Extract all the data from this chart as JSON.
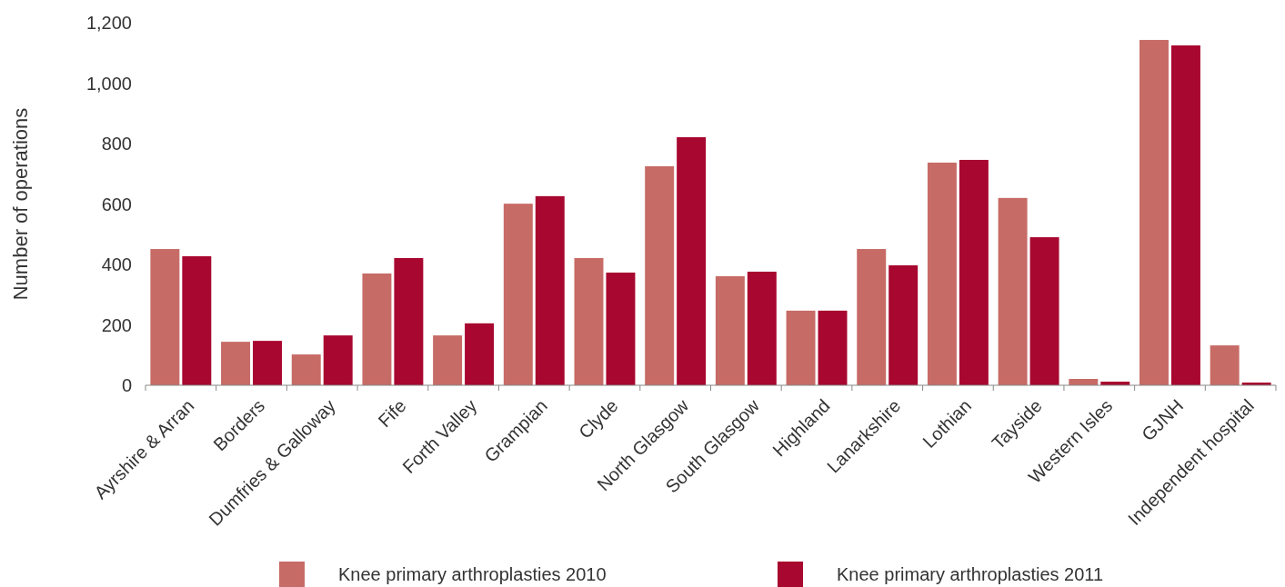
{
  "chart_data": {
    "type": "bar",
    "ylabel": "Number of operations",
    "categories": [
      "Ayrshire & Arran",
      "Borders",
      "Dumfries & Galloway",
      "Fife",
      "Forth Valley",
      "Grampian",
      "Clyde",
      "North Glasgow",
      "South Glasgow",
      "Highland",
      "Lanarkshire",
      "Lothian",
      "Tayside",
      "Western Isles",
      "GJNH",
      "Independent hospital"
    ],
    "series": [
      {
        "name": "Knee primary arthroplasties 2010",
        "color": "#c76b66",
        "values": [
          451,
          144,
          102,
          370,
          165,
          601,
          421,
          725,
          361,
          247,
          451,
          737,
          620,
          21,
          1143,
          132
        ]
      },
      {
        "name": "Knee primary arthroplasties 2011",
        "color": "#a8072f",
        "values": [
          427,
          147,
          165,
          421,
          205,
          626,
          373,
          821,
          376,
          247,
          397,
          746,
          490,
          12,
          1125,
          9
        ]
      }
    ],
    "ylim": [
      0,
      1200
    ],
    "yticks": [
      0,
      {
        "value": 200,
        "label": "200"
      },
      {
        "value": 400,
        "label": "400"
      },
      {
        "value": 600,
        "label": "600"
      },
      {
        "value": 800,
        "label": "800"
      },
      {
        "value": 1000,
        "label": "1,000"
      },
      {
        "value": 1200,
        "label": "1,200"
      }
    ],
    "grid": false,
    "legend": "bottom"
  }
}
